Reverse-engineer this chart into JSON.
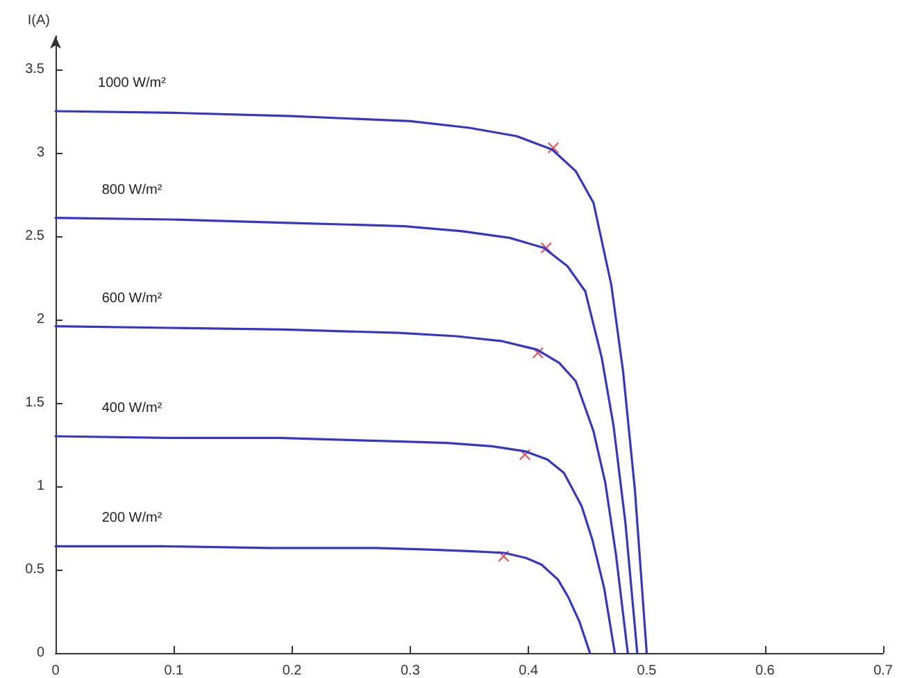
{
  "chart_data": {
    "type": "line",
    "ylabel": "I(A)",
    "xlim": [
      0,
      0.7
    ],
    "xticks": [
      0,
      0.1,
      0.2,
      0.3,
      0.4,
      0.5,
      0.6,
      0.7
    ],
    "ylim": [
      0,
      3.7
    ],
    "yticks": [
      0,
      0.5,
      1,
      1.5,
      2,
      2.5,
      3,
      3.5
    ],
    "grid": false,
    "marker": "none",
    "line_style": "solid",
    "series": [
      {
        "name": "1000 W/m²",
        "color": "#3535c8",
        "x": [
          0,
          0.1,
          0.2,
          0.3,
          0.35,
          0.39,
          0.42,
          0.44,
          0.455,
          0.47,
          0.48,
          0.49,
          0.5
        ],
        "values": [
          3.25,
          3.24,
          3.22,
          3.19,
          3.15,
          3.1,
          3.02,
          2.89,
          2.7,
          2.21,
          1.69,
          0.98,
          0
        ]
      },
      {
        "name": "800 W/m²",
        "color": "#3535c8",
        "x": [
          0,
          0.098,
          0.197,
          0.295,
          0.344,
          0.384,
          0.413,
          0.433,
          0.448,
          0.462,
          0.472,
          0.482,
          0.492
        ],
        "values": [
          2.61,
          2.6,
          2.58,
          2.56,
          2.53,
          2.49,
          2.43,
          2.32,
          2.17,
          1.77,
          1.36,
          0.78,
          0
        ]
      },
      {
        "name": "600 W/m²",
        "color": "#3535c8",
        "x": [
          0,
          0.097,
          0.194,
          0.29,
          0.339,
          0.378,
          0.407,
          0.426,
          0.44,
          0.455,
          0.465,
          0.474,
          0.484
        ],
        "values": [
          1.96,
          1.95,
          1.94,
          1.92,
          1.9,
          1.87,
          1.82,
          1.74,
          1.63,
          1.33,
          1.02,
          0.59,
          0
        ]
      },
      {
        "name": "400 W/m²",
        "color": "#3535c8",
        "x": [
          0,
          0.095,
          0.189,
          0.284,
          0.331,
          0.369,
          0.397,
          0.416,
          0.43,
          0.445,
          0.454,
          0.464,
          0.473
        ],
        "values": [
          1.3,
          1.29,
          1.29,
          1.27,
          1.26,
          1.24,
          1.21,
          1.16,
          1.08,
          0.88,
          0.68,
          0.39,
          0
        ]
      },
      {
        "name": "200 W/m²",
        "color": "#3535c8",
        "x": [
          0,
          0.09,
          0.181,
          0.271,
          0.316,
          0.353,
          0.38,
          0.398,
          0.411,
          0.425,
          0.434,
          0.443,
          0.452
        ],
        "values": [
          0.64,
          0.64,
          0.63,
          0.63,
          0.62,
          0.61,
          0.6,
          0.57,
          0.53,
          0.44,
          0.33,
          0.19,
          0
        ]
      },
      {
        "type": "scatter",
        "marker": "cross",
        "color": "#e03030",
        "x": [
          0.421,
          0.415,
          0.408,
          0.397,
          0.379
        ],
        "values": [
          3.03,
          2.43,
          1.8,
          1.19,
          0.58
        ]
      }
    ]
  }
}
